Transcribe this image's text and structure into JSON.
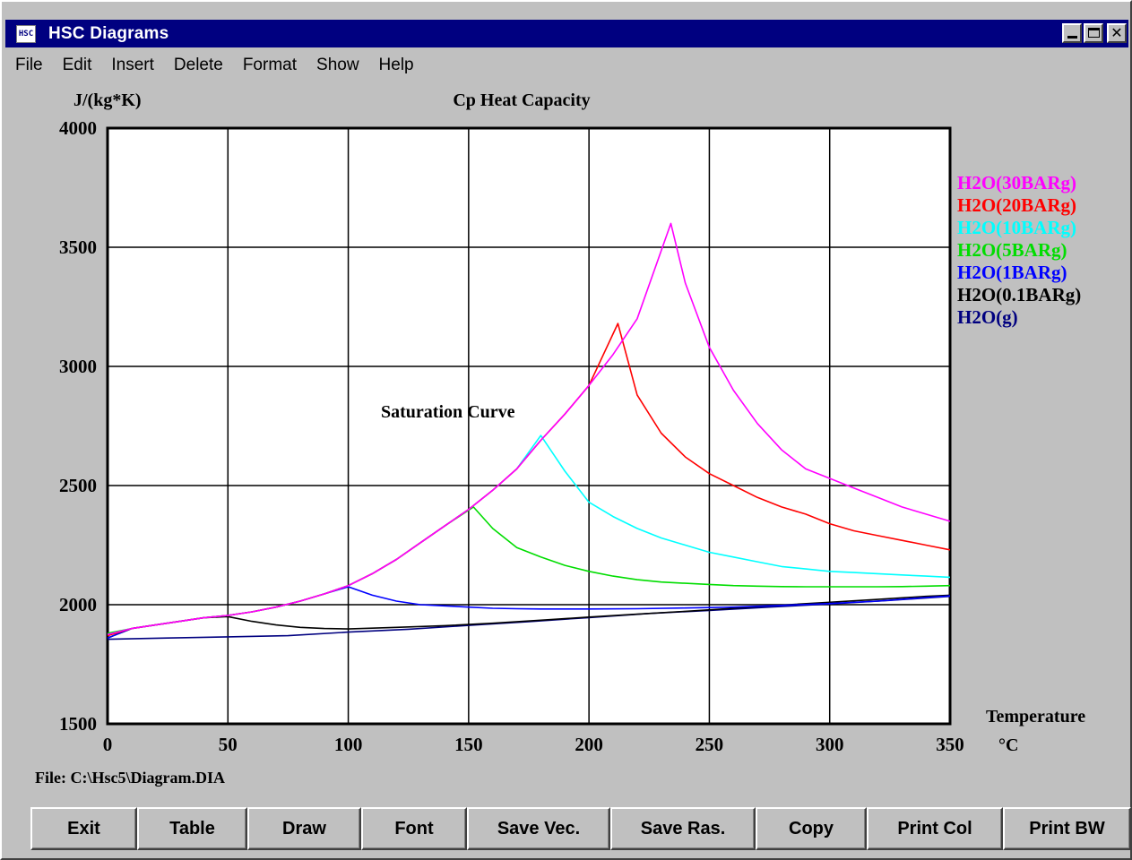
{
  "window": {
    "title": "HSC Diagrams",
    "icon_text": "HSC"
  },
  "menu": [
    "File",
    "Edit",
    "Insert",
    "Delete",
    "Format",
    "Show",
    "Help"
  ],
  "chart_data": {
    "type": "line",
    "title": "Cp Heat Capacity",
    "ylabel": "J/(kg*K)",
    "xlabel": "Temperature",
    "xunit": "°C",
    "xlim": [
      0,
      350
    ],
    "ylim": [
      1500,
      4000
    ],
    "xticks": [
      0,
      50,
      100,
      150,
      200,
      250,
      300,
      350
    ],
    "yticks": [
      1500,
      2000,
      2500,
      3000,
      3500,
      4000
    ],
    "grid": true,
    "legend_position": "right",
    "annotation": "Saturation Curve",
    "series": [
      {
        "name": "H2O(30BARg)",
        "color": "#ff00ff",
        "x": [
          0,
          10,
          20,
          30,
          40,
          50,
          60,
          70,
          80,
          90,
          100,
          110,
          120,
          130,
          140,
          150,
          160,
          170,
          180,
          190,
          200,
          210,
          220,
          234,
          240,
          250,
          260,
          270,
          280,
          290,
          300,
          310,
          320,
          330,
          340,
          350
        ],
        "y": [
          1875,
          1900,
          1915,
          1930,
          1945,
          1955,
          1970,
          1990,
          2015,
          2045,
          2080,
          2130,
          2190,
          2260,
          2330,
          2400,
          2480,
          2570,
          2690,
          2800,
          2920,
          3050,
          3200,
          3600,
          3350,
          3080,
          2900,
          2760,
          2650,
          2570,
          2530,
          2490,
          2450,
          2410,
          2380,
          2350
        ]
      },
      {
        "name": "H2O(20BARg)",
        "color": "#ff0000",
        "x": [
          0,
          10,
          20,
          30,
          40,
          50,
          60,
          70,
          80,
          90,
          100,
          110,
          120,
          130,
          140,
          150,
          160,
          170,
          180,
          190,
          200,
          212,
          220,
          230,
          240,
          250,
          260,
          270,
          280,
          290,
          300,
          310,
          320,
          330,
          340,
          350
        ],
        "y": [
          1870,
          1900,
          1915,
          1930,
          1945,
          1955,
          1970,
          1990,
          2015,
          2045,
          2080,
          2130,
          2190,
          2260,
          2330,
          2400,
          2480,
          2570,
          2690,
          2800,
          2920,
          3180,
          2880,
          2720,
          2620,
          2550,
          2500,
          2450,
          2410,
          2380,
          2340,
          2310,
          2290,
          2270,
          2250,
          2230
        ]
      },
      {
        "name": "H2O(10BARg)",
        "color": "#00ffff",
        "x": [
          0,
          10,
          20,
          30,
          40,
          50,
          60,
          70,
          80,
          90,
          100,
          110,
          120,
          130,
          140,
          150,
          160,
          170,
          180,
          190,
          200,
          210,
          220,
          230,
          240,
          250,
          260,
          270,
          280,
          290,
          300,
          310,
          320,
          330,
          340,
          350
        ],
        "y": [
          1875,
          1900,
          1915,
          1930,
          1945,
          1955,
          1970,
          1990,
          2015,
          2045,
          2080,
          2130,
          2190,
          2260,
          2330,
          2400,
          2480,
          2570,
          2710,
          2560,
          2430,
          2370,
          2320,
          2280,
          2250,
          2220,
          2200,
          2180,
          2160,
          2150,
          2140,
          2135,
          2130,
          2125,
          2120,
          2115
        ]
      },
      {
        "name": "H2O(5BARg)",
        "color": "#00dd00",
        "x": [
          0,
          10,
          20,
          30,
          40,
          50,
          60,
          70,
          80,
          90,
          100,
          110,
          120,
          130,
          140,
          152,
          160,
          170,
          180,
          190,
          200,
          210,
          220,
          230,
          240,
          250,
          260,
          270,
          280,
          290,
          300,
          310,
          320,
          330,
          340,
          350
        ],
        "y": [
          1880,
          1900,
          1915,
          1930,
          1945,
          1955,
          1970,
          1990,
          2015,
          2045,
          2080,
          2130,
          2190,
          2260,
          2330,
          2410,
          2320,
          2240,
          2200,
          2165,
          2140,
          2120,
          2105,
          2095,
          2090,
          2085,
          2080,
          2078,
          2076,
          2075,
          2075,
          2075,
          2075,
          2076,
          2078,
          2080
        ]
      },
      {
        "name": "H2O(1BARg)",
        "color": "#0000ff",
        "x": [
          0,
          10,
          20,
          30,
          40,
          50,
          60,
          70,
          80,
          90,
          100,
          110,
          120,
          130,
          140,
          150,
          160,
          170,
          180,
          190,
          200,
          220,
          240,
          260,
          280,
          300,
          320,
          340,
          350
        ],
        "y": [
          1860,
          1900,
          1915,
          1930,
          1945,
          1955,
          1970,
          1990,
          2015,
          2045,
          2075,
          2040,
          2015,
          2000,
          1995,
          1990,
          1985,
          1983,
          1982,
          1982,
          1982,
          1983,
          1986,
          1990,
          1997,
          2005,
          2015,
          2030,
          2037
        ]
      },
      {
        "name": "H2O(0.1BARg)",
        "color": "#000000",
        "x": [
          0,
          10,
          20,
          30,
          40,
          50,
          60,
          70,
          80,
          90,
          100,
          120,
          140,
          160,
          180,
          200,
          220,
          240,
          260,
          280,
          300,
          320,
          340,
          350
        ],
        "y": [
          1860,
          1900,
          1915,
          1930,
          1945,
          1950,
          1930,
          1915,
          1905,
          1900,
          1898,
          1905,
          1912,
          1922,
          1935,
          1948,
          1960,
          1972,
          1985,
          1998,
          2010,
          2022,
          2035,
          2040
        ]
      },
      {
        "name": "H2O(g)",
        "color": "#000080",
        "x": [
          0,
          25,
          50,
          75,
          100,
          125,
          150,
          175,
          200,
          225,
          250,
          275,
          300,
          325,
          350
        ],
        "y": [
          1855,
          1860,
          1865,
          1870,
          1885,
          1897,
          1913,
          1929,
          1946,
          1963,
          1976,
          1990,
          2003,
          2018,
          2035
        ]
      }
    ]
  },
  "file_label": "File: C:\\Hsc5\\Diagram.DIA",
  "buttons": [
    "Exit",
    "Table",
    "Draw",
    "Font",
    "Save Vec.",
    "Save Ras.",
    "Copy",
    "Print Col",
    "Print BW"
  ]
}
